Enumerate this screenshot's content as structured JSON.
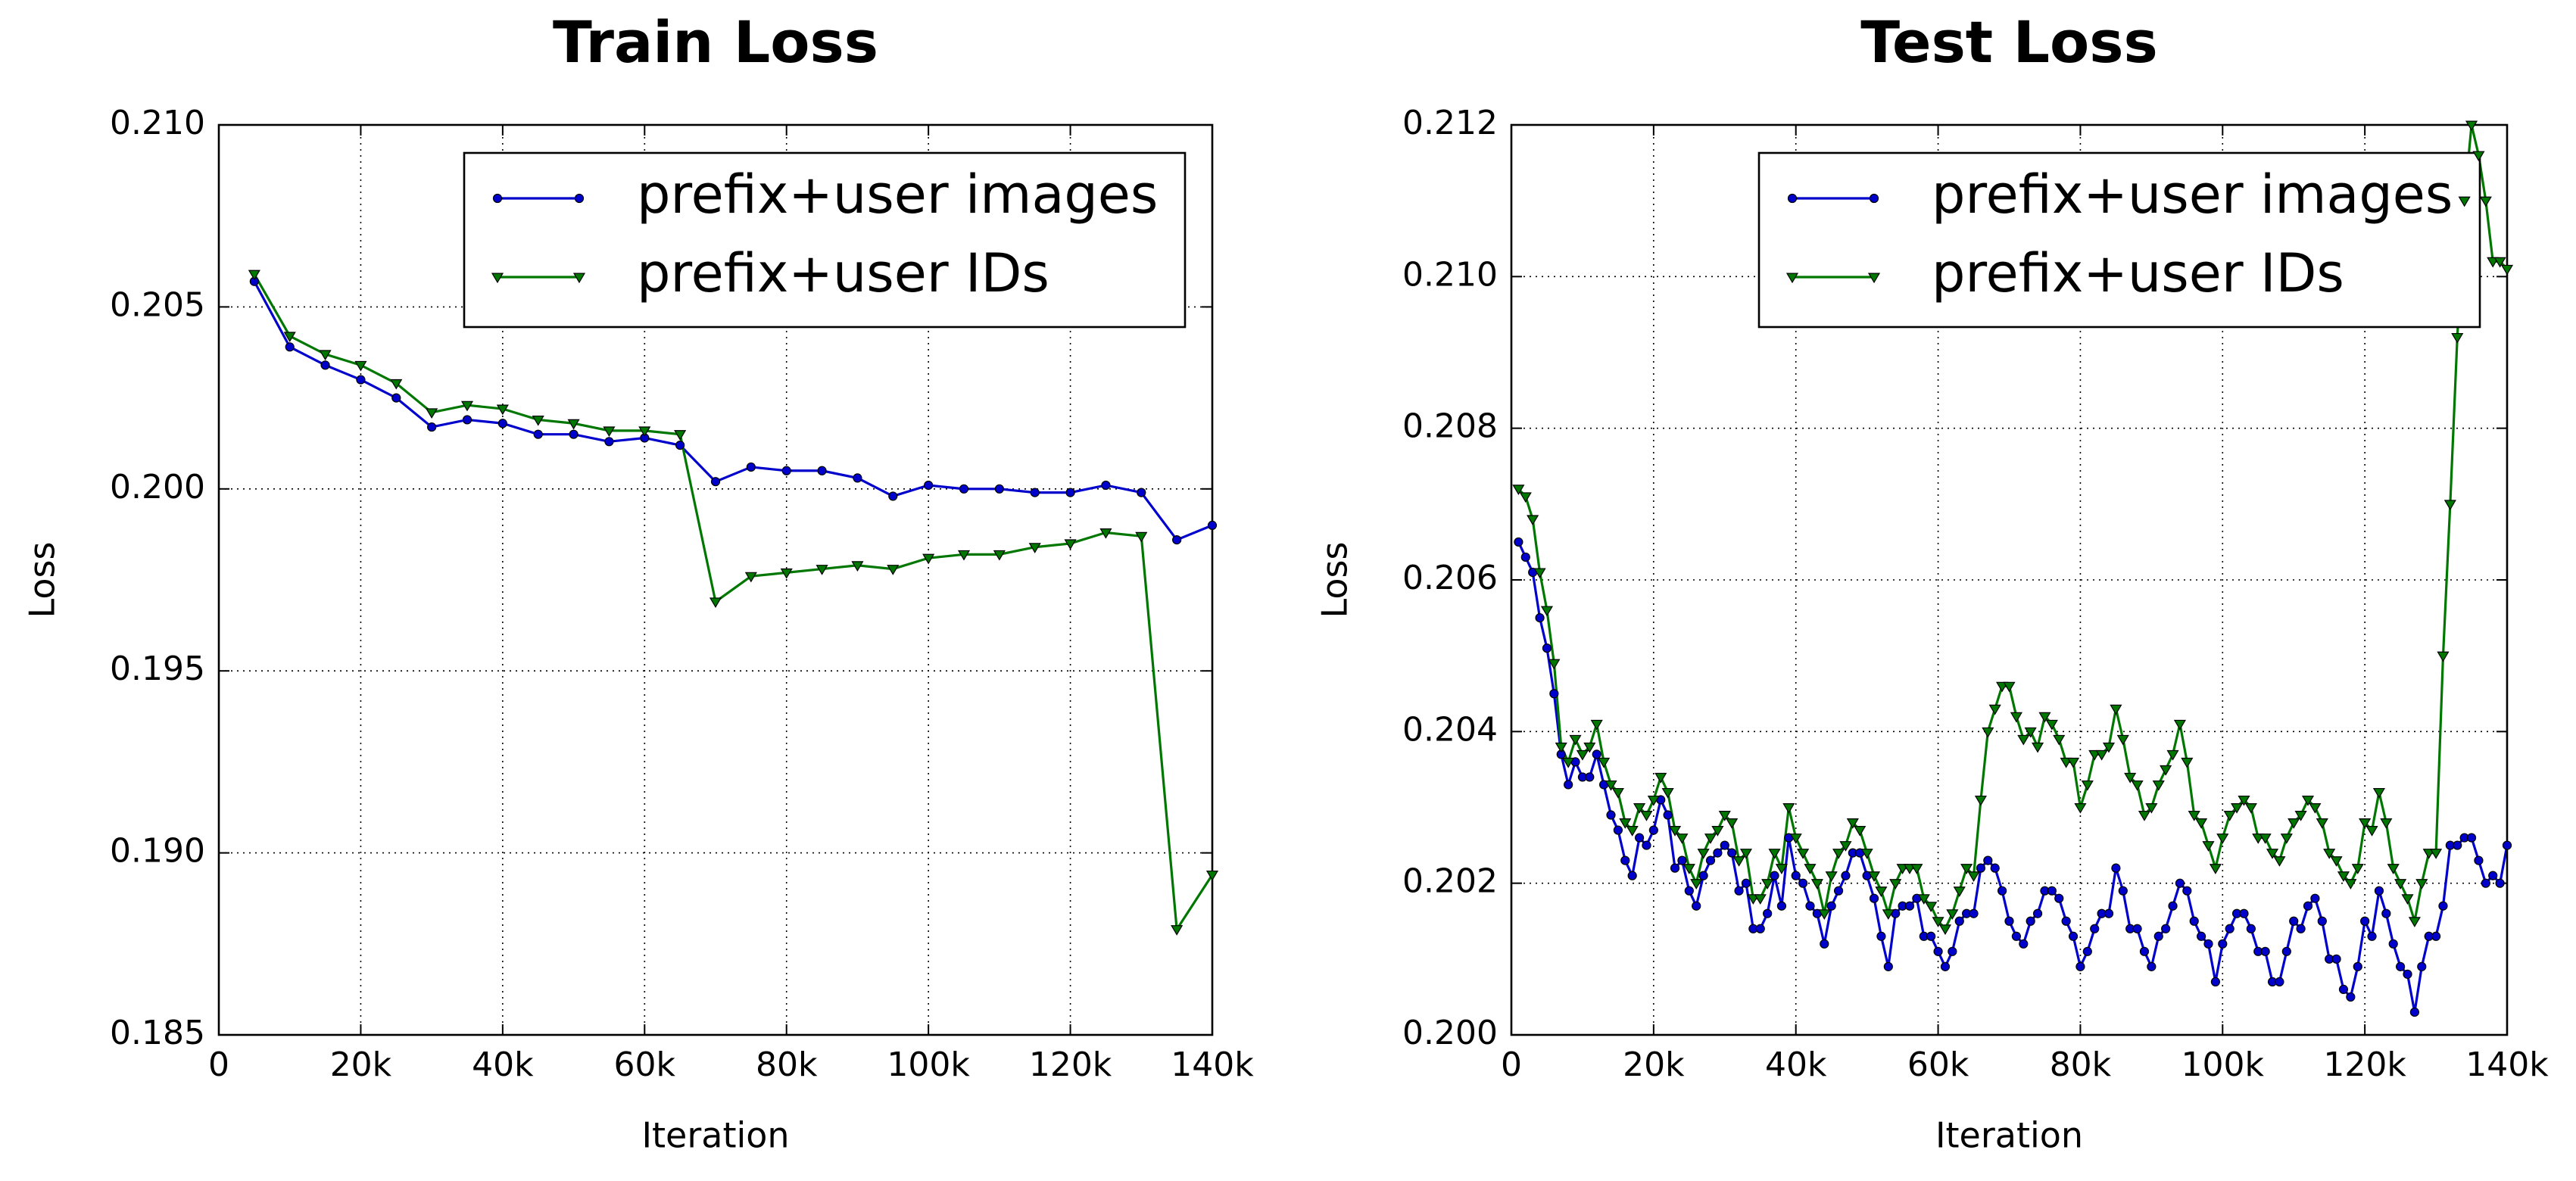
{
  "chart_data": [
    {
      "type": "line",
      "title": "Train Loss",
      "xlabel": "Iteration",
      "ylabel": "Loss",
      "grid": true,
      "legend": "upper right",
      "xlim": [
        0,
        140000
      ],
      "ylim": [
        0.185,
        0.21
      ],
      "xticks": [
        0,
        {
          "value": 20000,
          "label": "20k"
        },
        {
          "value": 40000,
          "label": "40k"
        },
        {
          "value": 60000,
          "label": "60k"
        },
        {
          "value": 80000,
          "label": "80k"
        },
        {
          "value": 100000,
          "label": "100k"
        },
        {
          "value": 120000,
          "label": "120k"
        },
        {
          "value": 140000,
          "label": "140k"
        }
      ],
      "yticks": [
        0.185,
        {
          "value": 0.19,
          "label": "0.190"
        },
        0.195,
        {
          "value": 0.2,
          "label": "0.200"
        },
        0.205,
        {
          "value": 0.21,
          "label": "0.210"
        }
      ],
      "x": [
        5000,
        10000,
        15000,
        20000,
        25000,
        30000,
        35000,
        40000,
        45000,
        50000,
        55000,
        60000,
        65000,
        70000,
        75000,
        80000,
        85000,
        90000,
        95000,
        100000,
        105000,
        110000,
        115000,
        120000,
        125000,
        130000,
        135000,
        140000
      ],
      "series": [
        {
          "name": "prefix+user images",
          "color": "#0000cc",
          "marker": "circle",
          "values": [
            0.2057,
            0.2039,
            0.2034,
            0.203,
            0.2025,
            0.2017,
            0.2019,
            0.2018,
            0.2015,
            0.2015,
            0.2013,
            0.2014,
            0.2012,
            0.2002,
            0.2006,
            0.2005,
            0.2005,
            0.2003,
            0.1998,
            0.2001,
            0.2,
            0.2,
            0.1999,
            0.1999,
            0.2001,
            0.1999,
            0.1986,
            0.199
          ]
        },
        {
          "name": "prefix+user IDs",
          "color": "#007700",
          "marker": "triangle-down",
          "values": [
            0.2059,
            0.2042,
            0.2037,
            0.2034,
            0.2029,
            0.2021,
            0.2023,
            0.2022,
            0.2019,
            0.2018,
            0.2016,
            0.2016,
            0.2015,
            0.1969,
            0.1976,
            0.1977,
            0.1978,
            0.1979,
            0.1978,
            0.1981,
            0.1982,
            0.1982,
            0.1984,
            0.1985,
            0.1988,
            0.1987,
            0.1879,
            0.1894
          ]
        }
      ]
    },
    {
      "type": "line",
      "title": "Test Loss",
      "xlabel": "Iteration",
      "ylabel": "Loss",
      "grid": true,
      "legend": "upper right",
      "xlim": [
        0,
        140000
      ],
      "ylim": [
        0.2,
        0.212
      ],
      "xticks": [
        0,
        {
          "value": 20000,
          "label": "20k"
        },
        {
          "value": 40000,
          "label": "40k"
        },
        {
          "value": 60000,
          "label": "60k"
        },
        {
          "value": 80000,
          "label": "80k"
        },
        {
          "value": 100000,
          "label": "100k"
        },
        {
          "value": 120000,
          "label": "120k"
        },
        {
          "value": 140000,
          "label": "140k"
        }
      ],
      "yticks": [
        {
          "value": 0.2,
          "label": "0.200"
        },
        0.202,
        0.204,
        0.206,
        0.208,
        {
          "value": 0.21,
          "label": "0.210"
        },
        0.212
      ],
      "x": [
        1000,
        2000,
        3000,
        4000,
        5000,
        6000,
        7000,
        8000,
        9000,
        10000,
        11000,
        12000,
        13000,
        14000,
        15000,
        16000,
        17000,
        18000,
        19000,
        20000,
        21000,
        22000,
        23000,
        24000,
        25000,
        26000,
        27000,
        28000,
        29000,
        30000,
        31000,
        32000,
        33000,
        34000,
        35000,
        36000,
        37000,
        38000,
        39000,
        40000,
        41000,
        42000,
        43000,
        44000,
        45000,
        46000,
        47000,
        48000,
        49000,
        50000,
        51000,
        52000,
        53000,
        54000,
        55000,
        56000,
        57000,
        58000,
        59000,
        60000,
        61000,
        62000,
        63000,
        64000,
        65000,
        66000,
        67000,
        68000,
        69000,
        70000,
        71000,
        72000,
        73000,
        74000,
        75000,
        76000,
        77000,
        78000,
        79000,
        80000,
        81000,
        82000,
        83000,
        84000,
        85000,
        86000,
        87000,
        88000,
        89000,
        90000,
        91000,
        92000,
        93000,
        94000,
        95000,
        96000,
        97000,
        98000,
        99000,
        100000,
        101000,
        102000,
        103000,
        104000,
        105000,
        106000,
        107000,
        108000,
        109000,
        110000,
        111000,
        112000,
        113000,
        114000,
        115000,
        116000,
        117000,
        118000,
        119000,
        120000,
        121000,
        122000,
        123000,
        124000,
        125000,
        126000,
        127000,
        128000,
        129000,
        130000,
        131000,
        132000,
        133000,
        134000,
        135000,
        136000,
        137000,
        138000,
        139000,
        140000
      ],
      "series": [
        {
          "name": "prefix+user images",
          "color": "#0000cc",
          "marker": "circle",
          "values": [
            0.2065,
            0.2063,
            0.2061,
            0.2055,
            0.2051,
            0.2045,
            0.2037,
            0.2033,
            0.2036,
            0.2034,
            0.2034,
            0.2037,
            0.2033,
            0.2029,
            0.2027,
            0.2023,
            0.2021,
            0.2026,
            0.2025,
            0.2027,
            0.2031,
            0.2029,
            0.2022,
            0.2023,
            0.2019,
            0.2017,
            0.2021,
            0.2023,
            0.2024,
            0.2025,
            0.2024,
            0.2019,
            0.202,
            0.2014,
            0.2014,
            0.2016,
            0.2021,
            0.2017,
            0.2026,
            0.2021,
            0.202,
            0.2017,
            0.2016,
            0.2012,
            0.2017,
            0.2019,
            0.2021,
            0.2024,
            0.2024,
            0.2021,
            0.2018,
            0.2013,
            0.2009,
            0.2016,
            0.2017,
            0.2017,
            0.2018,
            0.2013,
            0.2013,
            0.2011,
            0.2009,
            0.2011,
            0.2015,
            0.2016,
            0.2016,
            0.2022,
            0.2023,
            0.2022,
            0.2019,
            0.2015,
            0.2013,
            0.2012,
            0.2015,
            0.2016,
            0.2019,
            0.2019,
            0.2018,
            0.2015,
            0.2013,
            0.2009,
            0.2011,
            0.2014,
            0.2016,
            0.2016,
            0.2022,
            0.2019,
            0.2014,
            0.2014,
            0.2011,
            0.2009,
            0.2013,
            0.2014,
            0.2017,
            0.202,
            0.2019,
            0.2015,
            0.2013,
            0.2012,
            0.2007,
            0.2012,
            0.2014,
            0.2016,
            0.2016,
            0.2014,
            0.2011,
            0.2011,
            0.2007,
            0.2007,
            0.2011,
            0.2015,
            0.2014,
            0.2017,
            0.2018,
            0.2015,
            0.201,
            0.201,
            0.2006,
            0.2005,
            0.2009,
            0.2015,
            0.2013,
            0.2019,
            0.2016,
            0.2012,
            0.2009,
            0.2008,
            0.2003,
            0.2009,
            0.2013,
            0.2013,
            0.2017,
            0.2025,
            0.2025,
            0.2026,
            0.2026,
            0.2023,
            0.202,
            0.2021,
            0.202,
            0.2025
          ]
        },
        {
          "name": "prefix+user IDs",
          "color": "#007700",
          "marker": "triangle-down",
          "values": [
            0.2072,
            0.2071,
            0.2068,
            0.2061,
            0.2056,
            0.2049,
            0.2038,
            0.2036,
            0.2039,
            0.2037,
            0.2038,
            0.2041,
            0.2036,
            0.2033,
            0.2032,
            0.2028,
            0.2027,
            0.203,
            0.2029,
            0.2031,
            0.2034,
            0.2032,
            0.2027,
            0.2026,
            0.2022,
            0.202,
            0.2024,
            0.2026,
            0.2027,
            0.2029,
            0.2028,
            0.2023,
            0.2024,
            0.2018,
            0.2018,
            0.202,
            0.2024,
            0.2022,
            0.203,
            0.2026,
            0.2024,
            0.2022,
            0.202,
            0.2016,
            0.2021,
            0.2024,
            0.2025,
            0.2028,
            0.2027,
            0.2024,
            0.2021,
            0.2019,
            0.2016,
            0.202,
            0.2022,
            0.2022,
            0.2022,
            0.2018,
            0.2017,
            0.2015,
            0.2014,
            0.2016,
            0.2019,
            0.2022,
            0.2021,
            0.2031,
            0.204,
            0.2043,
            0.2046,
            0.2046,
            0.2042,
            0.2039,
            0.204,
            0.2038,
            0.2042,
            0.2041,
            0.2039,
            0.2036,
            0.2036,
            0.203,
            0.2033,
            0.2037,
            0.2037,
            0.2038,
            0.2043,
            0.2039,
            0.2034,
            0.2033,
            0.2029,
            0.203,
            0.2033,
            0.2035,
            0.2037,
            0.2041,
            0.2036,
            0.2029,
            0.2028,
            0.2025,
            0.2022,
            0.2026,
            0.2029,
            0.203,
            0.2031,
            0.203,
            0.2026,
            0.2026,
            0.2024,
            0.2023,
            0.2026,
            0.2028,
            0.2029,
            0.2031,
            0.203,
            0.2028,
            0.2024,
            0.2023,
            0.2021,
            0.202,
            0.2022,
            0.2028,
            0.2027,
            0.2032,
            0.2028,
            0.2022,
            0.202,
            0.2018,
            0.2015,
            0.202,
            0.2024,
            0.2024,
            0.205,
            0.207,
            0.2092,
            0.211,
            0.212,
            0.2116,
            0.211,
            0.2102,
            0.2102,
            0.2101
          ]
        }
      ]
    }
  ]
}
